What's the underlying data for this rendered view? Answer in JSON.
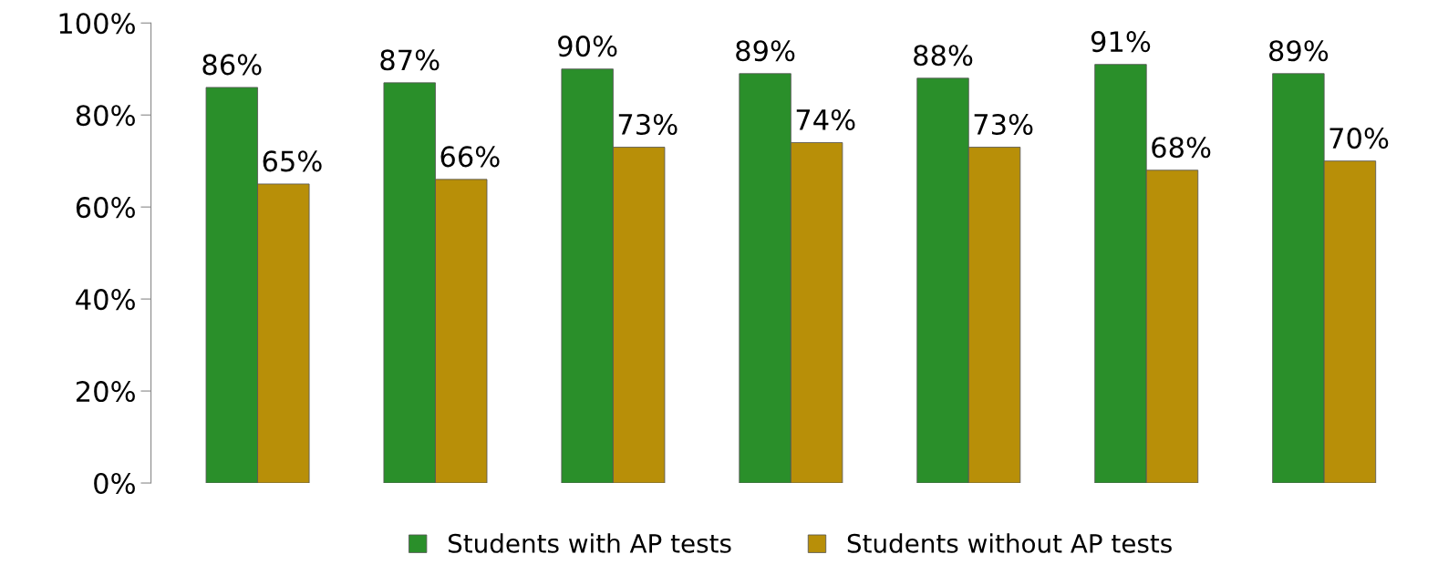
{
  "chart_data": {
    "type": "bar",
    "categories": [
      null,
      null,
      null,
      null,
      null,
      null,
      null
    ],
    "series": [
      {
        "name": "Students with AP tests",
        "color": "#2a8f2a",
        "values": [
          86,
          87,
          90,
          89,
          88,
          91,
          89
        ],
        "value_labels": [
          "86%",
          "87%",
          "90%",
          "89%",
          "88%",
          "91%",
          "89%"
        ]
      },
      {
        "name": "Students without AP tests",
        "color": "#b88f08",
        "values": [
          65,
          66,
          73,
          74,
          73,
          68,
          70
        ],
        "value_labels": [
          "65%",
          "66%",
          "73%",
          "74%",
          "73%",
          "68%",
          "70%"
        ]
      }
    ],
    "ylim": [
      0,
      100
    ],
    "yticks": [
      {
        "value": 0,
        "label": "0%"
      },
      {
        "value": 20,
        "label": "20%"
      },
      {
        "value": 40,
        "label": "40%"
      },
      {
        "value": 60,
        "label": "60%"
      },
      {
        "value": 80,
        "label": "80%"
      },
      {
        "value": 100,
        "label": "100%"
      }
    ],
    "legend": "bottom",
    "grid": false
  }
}
